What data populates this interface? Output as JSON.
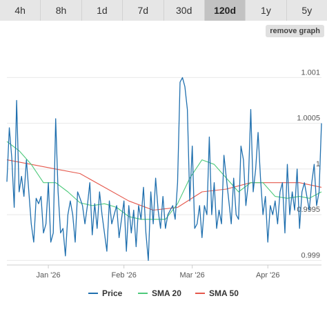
{
  "range_tabs": [
    {
      "label": "4h",
      "active": false
    },
    {
      "label": "8h",
      "active": false
    },
    {
      "label": "1d",
      "active": false
    },
    {
      "label": "7d",
      "active": false
    },
    {
      "label": "30d",
      "active": false
    },
    {
      "label": "120d",
      "active": true
    },
    {
      "label": "1y",
      "active": false
    },
    {
      "label": "5y",
      "active": false
    }
  ],
  "remove_graph_label": "remove graph",
  "colors": {
    "price": "#1f6fae",
    "sma20": "#4cc97a",
    "sma50": "#e5574b",
    "grid": "#e8e8e8",
    "axis": "#cccccc"
  },
  "chart_data": {
    "type": "line",
    "x_axis": {
      "min": "2025-12-15",
      "max": "2026-04-23",
      "ticks": [
        {
          "date": "2026-01-01",
          "label": "Jan '26"
        },
        {
          "date": "2026-02-01",
          "label": "Feb '26"
        },
        {
          "date": "2026-03-01",
          "label": "Mar '26"
        },
        {
          "date": "2026-04-01",
          "label": "Apr '26"
        }
      ]
    },
    "y_axis": {
      "min": 0.999,
      "max": 1.0015,
      "ticks": [
        0.999,
        0.9995,
        1,
        1.0005,
        1.001
      ],
      "tick_labels": [
        "0.999",
        "0.9995",
        "1",
        "1.0005",
        "1.001"
      ]
    },
    "grid": true,
    "legend_position": "bottom",
    "series": [
      {
        "name": "Price",
        "key": "price",
        "values": [
          [
            "2025-12-15",
            0.99986
          ],
          [
            "2025-12-16",
            1.00045
          ],
          [
            "2025-12-17",
            1.00012
          ],
          [
            "2025-12-18",
            0.99958
          ],
          [
            "2025-12-19",
            1.00075
          ],
          [
            "2025-12-20",
            0.99975
          ],
          [
            "2025-12-21",
            0.99992
          ],
          [
            "2025-12-22",
            0.9997
          ],
          [
            "2025-12-23",
            1.0001
          ],
          [
            "2025-12-24",
            0.99975
          ],
          [
            "2025-12-25",
            0.9994
          ],
          [
            "2025-12-26",
            0.9992
          ],
          [
            "2025-12-27",
            0.99968
          ],
          [
            "2025-12-28",
            0.99962
          ],
          [
            "2025-12-29",
            0.9997
          ],
          [
            "2025-12-30",
            0.9993
          ],
          [
            "2025-12-31",
            0.9994
          ],
          [
            "2026-01-01",
            0.99985
          ],
          [
            "2026-01-02",
            0.9992
          ],
          [
            "2026-01-03",
            0.9993
          ],
          [
            "2026-01-04",
            1.00055
          ],
          [
            "2026-01-05",
            0.99975
          ],
          [
            "2026-01-06",
            0.9993
          ],
          [
            "2026-01-07",
            0.99935
          ],
          [
            "2026-01-08",
            0.99905
          ],
          [
            "2026-01-09",
            0.9995
          ],
          [
            "2026-01-10",
            0.99965
          ],
          [
            "2026-01-11",
            0.9995
          ],
          [
            "2026-01-12",
            0.9992
          ],
          [
            "2026-01-13",
            0.99975
          ],
          [
            "2026-01-14",
            0.99968
          ],
          [
            "2026-01-15",
            0.9996
          ],
          [
            "2026-01-16",
            0.9994
          ],
          [
            "2026-01-17",
            0.9996
          ],
          [
            "2026-01-18",
            0.99985
          ],
          [
            "2026-01-19",
            0.99928
          ],
          [
            "2026-01-20",
            0.99962
          ],
          [
            "2026-01-21",
            0.99935
          ],
          [
            "2026-01-22",
            0.99975
          ],
          [
            "2026-01-23",
            0.9995
          ],
          [
            "2026-01-24",
            0.9993
          ],
          [
            "2026-01-25",
            0.9991
          ],
          [
            "2026-01-26",
            0.99965
          ],
          [
            "2026-01-27",
            0.9994
          ],
          [
            "2026-01-28",
            0.9995
          ],
          [
            "2026-01-29",
            0.9996
          ],
          [
            "2026-01-30",
            0.99925
          ],
          [
            "2026-01-31",
            0.99945
          ],
          [
            "2026-02-01",
            0.99965
          ],
          [
            "2026-02-02",
            0.9991
          ],
          [
            "2026-02-03",
            0.9996
          ],
          [
            "2026-02-04",
            0.9993
          ],
          [
            "2026-02-05",
            0.99955
          ],
          [
            "2026-02-06",
            0.99915
          ],
          [
            "2026-02-07",
            0.9996
          ],
          [
            "2026-02-08",
            0.99945
          ],
          [
            "2026-02-09",
            0.9998
          ],
          [
            "2026-02-10",
            0.9993
          ],
          [
            "2026-02-11",
            0.999
          ],
          [
            "2026-02-12",
            0.99975
          ],
          [
            "2026-02-13",
            0.9994
          ],
          [
            "2026-02-14",
            0.9999
          ],
          [
            "2026-02-15",
            0.99955
          ],
          [
            "2026-02-16",
            0.99935
          ],
          [
            "2026-02-17",
            0.9997
          ],
          [
            "2026-02-18",
            0.99935
          ],
          [
            "2026-02-19",
            0.9995
          ],
          [
            "2026-02-20",
            0.99955
          ],
          [
            "2026-02-21",
            0.9996
          ],
          [
            "2026-02-22",
            0.99945
          ],
          [
            "2026-02-23",
            0.99985
          ],
          [
            "2026-02-24",
            1.00095
          ],
          [
            "2026-02-25",
            1.001
          ],
          [
            "2026-02-26",
            1.0009
          ],
          [
            "2026-02-27",
            1.00065
          ],
          [
            "2026-02-28",
            0.99965
          ],
          [
            "2026-03-01",
            1.00025
          ],
          [
            "2026-03-02",
            0.99935
          ],
          [
            "2026-03-03",
            0.9994
          ],
          [
            "2026-03-04",
            0.9996
          ],
          [
            "2026-03-05",
            0.99925
          ],
          [
            "2026-03-06",
            0.9996
          ],
          [
            "2026-03-07",
            0.9995
          ],
          [
            "2026-03-08",
            1.00035
          ],
          [
            "2026-03-09",
            0.9995
          ],
          [
            "2026-03-10",
            0.99985
          ],
          [
            "2026-03-11",
            0.99935
          ],
          [
            "2026-03-12",
            0.99955
          ],
          [
            "2026-03-13",
            0.9994
          ],
          [
            "2026-03-14",
            1.00015
          ],
          [
            "2026-03-15",
            0.9999
          ],
          [
            "2026-03-16",
            0.99965
          ],
          [
            "2026-03-17",
            0.9994
          ],
          [
            "2026-03-18",
            0.9999
          ],
          [
            "2026-03-19",
            0.9995
          ],
          [
            "2026-03-20",
            0.99945
          ],
          [
            "2026-03-21",
            1.00025
          ],
          [
            "2026-03-22",
            1.0001
          ],
          [
            "2026-03-23",
            0.9996
          ],
          [
            "2026-03-24",
            0.99985
          ],
          [
            "2026-03-25",
            1.00065
          ],
          [
            "2026-03-26",
            0.99975
          ],
          [
            "2026-03-27",
            1.0
          ],
          [
            "2026-03-28",
            1.0004
          ],
          [
            "2026-03-29",
            0.9999
          ],
          [
            "2026-03-30",
            0.9995
          ],
          [
            "2026-03-31",
            0.9997
          ],
          [
            "2026-04-01",
            0.9992
          ],
          [
            "2026-04-02",
            0.9996
          ],
          [
            "2026-04-03",
            0.9995
          ],
          [
            "2026-04-04",
            0.99965
          ],
          [
            "2026-04-05",
            0.9994
          ],
          [
            "2026-04-06",
            0.99975
          ],
          [
            "2026-04-07",
            0.99985
          ],
          [
            "2026-04-08",
            0.9993
          ],
          [
            "2026-04-09",
            1.00005
          ],
          [
            "2026-04-10",
            0.9995
          ],
          [
            "2026-04-11",
            0.99975
          ],
          [
            "2026-04-12",
            0.99955
          ],
          [
            "2026-04-13",
            1.0
          ],
          [
            "2026-04-14",
            0.99935
          ],
          [
            "2026-04-15",
            0.99975
          ],
          [
            "2026-04-16",
            0.99985
          ],
          [
            "2026-04-17",
            0.9997
          ],
          [
            "2026-04-18",
            0.99955
          ],
          [
            "2026-04-19",
            0.99985
          ],
          [
            "2026-04-20",
            1.00005
          ],
          [
            "2026-04-21",
            0.9996
          ],
          [
            "2026-04-22",
            0.99975
          ],
          [
            "2026-04-23",
            1.0005
          ]
        ]
      },
      {
        "name": "SMA 20",
        "key": "sma20",
        "values": [
          [
            "2025-12-15",
            1.0003
          ],
          [
            "2025-12-20",
            1.0002
          ],
          [
            "2025-12-25",
            1.00005
          ],
          [
            "2025-12-30",
            0.99985
          ],
          [
            "2026-01-04",
            0.99985
          ],
          [
            "2026-01-09",
            0.99975
          ],
          [
            "2026-01-14",
            0.99963
          ],
          [
            "2026-01-19",
            0.9996
          ],
          [
            "2026-01-24",
            0.99962
          ],
          [
            "2026-01-29",
            0.99958
          ],
          [
            "2026-02-03",
            0.99948
          ],
          [
            "2026-02-08",
            0.99945
          ],
          [
            "2026-02-13",
            0.99945
          ],
          [
            "2026-02-18",
            0.99945
          ],
          [
            "2026-02-23",
            0.99962
          ],
          [
            "2026-02-28",
            0.9999
          ],
          [
            "2026-03-05",
            1.0001
          ],
          [
            "2026-03-10",
            1.00005
          ],
          [
            "2026-03-15",
            0.9999
          ],
          [
            "2026-03-20",
            0.99975
          ],
          [
            "2026-03-25",
            0.99985
          ],
          [
            "2026-03-30",
            0.99985
          ],
          [
            "2026-04-04",
            0.9997
          ],
          [
            "2026-04-09",
            0.99968
          ],
          [
            "2026-04-14",
            0.9997
          ],
          [
            "2026-04-18",
            0.99968
          ],
          [
            "2026-04-23",
            0.99975
          ]
        ]
      },
      {
        "name": "SMA 50",
        "key": "sma50",
        "values": [
          [
            "2025-12-15",
            1.0001
          ],
          [
            "2025-12-25",
            1.00005
          ],
          [
            "2026-01-04",
            1.0
          ],
          [
            "2026-01-14",
            0.99995
          ],
          [
            "2026-01-24",
            0.9998
          ],
          [
            "2026-02-03",
            0.99965
          ],
          [
            "2026-02-13",
            0.99955
          ],
          [
            "2026-02-23",
            0.99958
          ],
          [
            "2026-03-05",
            0.99975
          ],
          [
            "2026-03-15",
            0.99978
          ],
          [
            "2026-03-25",
            0.99985
          ],
          [
            "2026-04-04",
            0.99985
          ],
          [
            "2026-04-14",
            0.99985
          ],
          [
            "2026-04-23",
            0.9998
          ]
        ]
      }
    ]
  }
}
